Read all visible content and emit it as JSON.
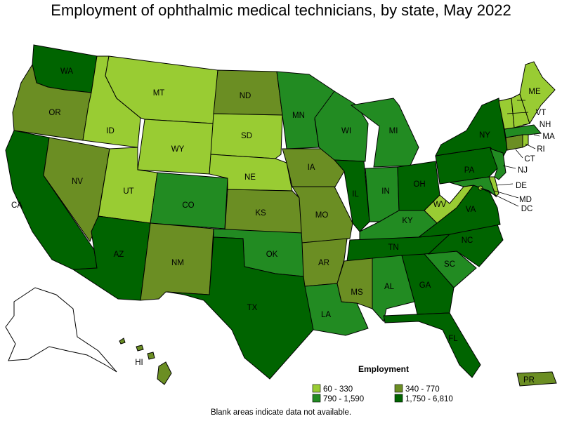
{
  "title": "Employment of ophthalmic medical technicians, by state, May 2022",
  "note": "Blank areas indicate data not available.",
  "legend": {
    "title": "Employment",
    "bins": [
      {
        "label": "60 - 330",
        "color": "#99cc33"
      },
      {
        "label": "340 - 770",
        "color": "#6b8e23"
      },
      {
        "label": "790 - 1,590",
        "color": "#228b22"
      },
      {
        "label": "1,750 - 6,810",
        "color": "#006400"
      }
    ]
  },
  "states": {
    "WA": 3,
    "OR": 1,
    "CA": 3,
    "NV": 1,
    "ID": 0,
    "MT": 0,
    "WY": 0,
    "UT": 0,
    "AZ": 3,
    "CO": 2,
    "NM": 1,
    "ND": 1,
    "SD": 0,
    "NE": 0,
    "KS": 1,
    "OK": 2,
    "TX": 3,
    "MN": 2,
    "IA": 1,
    "MO": 1,
    "AR": 1,
    "LA": 2,
    "WI": 2,
    "IL": 3,
    "MI": 2,
    "IN": 2,
    "OH": 3,
    "KY": 2,
    "TN": 3,
    "MS": 1,
    "AL": 2,
    "GA": 3,
    "FL": 3,
    "SC": 2,
    "NC": 3,
    "VA": 3,
    "WV": 0,
    "MD": 2,
    "DE": 0,
    "PA": 3,
    "NY": 3,
    "NJ": 2,
    "CT": 1,
    "RI": 0,
    "MA": 2,
    "VT": 0,
    "NH": 0,
    "ME": 0,
    "AK": null,
    "HI": 1,
    "PR": 1,
    "DC": 0
  }
}
